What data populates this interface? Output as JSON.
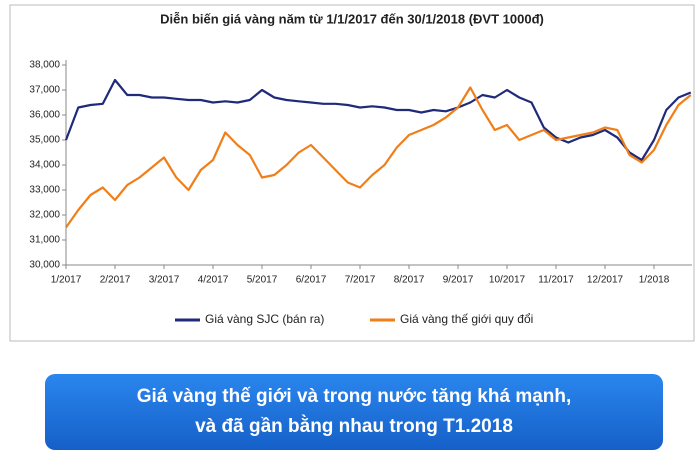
{
  "chart_data": {
    "type": "line",
    "title": "Diễn biến giá vàng năm từ 1/1/2017 đến 30/1/2018 (ĐVT 1000đ)",
    "categories": [
      "1/2017",
      null,
      null,
      null,
      "2/2017",
      null,
      null,
      null,
      "3/2017",
      null,
      null,
      null,
      "4/2017",
      null,
      null,
      null,
      "5/2017",
      null,
      null,
      null,
      "6/2017",
      null,
      null,
      null,
      "7/2017",
      null,
      null,
      null,
      "8/2017",
      null,
      null,
      null,
      "9/2017",
      null,
      null,
      null,
      "10/2017",
      null,
      null,
      null,
      "11/2017",
      null,
      null,
      null,
      "12/2017",
      null,
      null,
      null,
      "1/2018",
      null,
      null,
      null
    ],
    "series": [
      {
        "name": "Giá vàng SJC (bán ra)",
        "color": "#1f2a7a",
        "values": [
          35000,
          36300,
          36400,
          36450,
          37400,
          36800,
          36800,
          36700,
          36700,
          36650,
          36600,
          36600,
          36500,
          36550,
          36500,
          36600,
          37000,
          36700,
          36600,
          36550,
          36500,
          36450,
          36450,
          36400,
          36300,
          36350,
          36300,
          36200,
          36200,
          36100,
          36200,
          36150,
          36300,
          36500,
          36800,
          36700,
          37000,
          36700,
          36500,
          35500,
          35100,
          34900,
          35100,
          35200,
          35400,
          35100,
          34500,
          34200,
          35000,
          36200,
          36700,
          36900
        ]
      },
      {
        "name": "Giá vàng thế giới quy đổi",
        "color": "#f07f1a",
        "values": [
          31500,
          32200,
          32800,
          33100,
          32600,
          33200,
          33500,
          33900,
          34300,
          33500,
          33000,
          33800,
          34200,
          35300,
          34800,
          34400,
          33500,
          33600,
          34000,
          34500,
          34800,
          34300,
          33800,
          33300,
          33100,
          33600,
          34000,
          34700,
          35200,
          35400,
          35600,
          35900,
          36300,
          37100,
          36200,
          35400,
          35600,
          35000,
          35200,
          35400,
          35000,
          35100,
          35200,
          35300,
          35500,
          35400,
          34400,
          34100,
          34600,
          35600,
          36400,
          36800
        ]
      }
    ],
    "ylim": [
      30000,
      38000
    ],
    "yticks": [
      {
        "value": 30000,
        "label": "30,000"
      },
      {
        "value": 31000,
        "label": "31,000"
      },
      {
        "value": 32000,
        "label": "32,000"
      },
      {
        "value": 33000,
        "label": "33,000"
      },
      {
        "value": 34000,
        "label": "34,000"
      },
      {
        "value": 35000,
        "label": "35,000"
      },
      {
        "value": 36000,
        "label": "36,000"
      },
      {
        "value": 37000,
        "label": "37,000"
      },
      {
        "value": 38000,
        "label": "38,000"
      }
    ],
    "legend": "bottom"
  },
  "caption": {
    "lines": [
      "Giá vàng thế giới và trong nước tăng khá mạnh,",
      "và đã gần bằng nhau trong T1.2018"
    ]
  }
}
